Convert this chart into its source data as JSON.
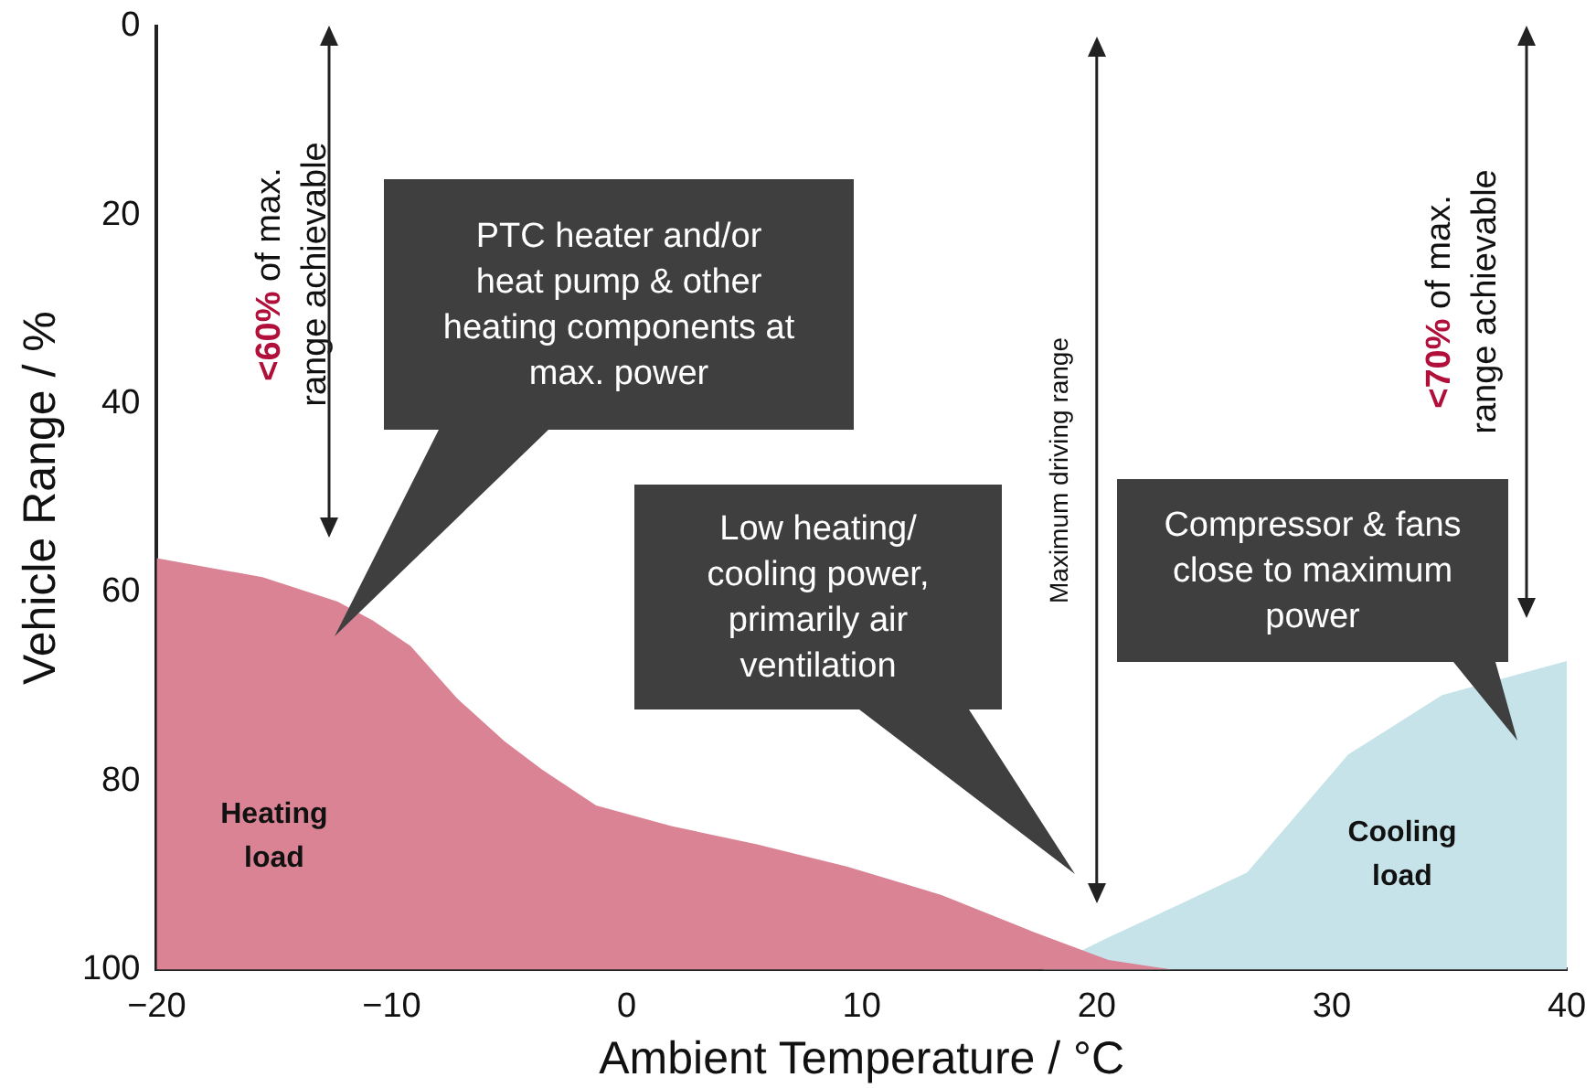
{
  "chart_data": {
    "type": "area",
    "xlabel": "Ambient Temperature / °C",
    "ylabel": "Vehicle Range / %",
    "xlim": [
      -20,
      40
    ],
    "xticks": [
      {
        "value": -20,
        "label": "−20"
      },
      {
        "value": -10,
        "label": "−10"
      },
      0,
      10,
      20,
      30,
      40
    ],
    "ylim": [
      100,
      0
    ],
    "yticks": [
      0,
      20,
      40,
      60,
      80,
      100
    ],
    "grid": false,
    "legend": false,
    "series": [
      {
        "name": "Heating load",
        "color": "#d98395",
        "x": [
          -20,
          -20,
          -15.5,
          -12.3,
          -10.8,
          -9.2,
          -7.2,
          -5.2,
          -3.6,
          -1.3,
          1.9,
          5.5,
          9.4,
          13.4,
          17.3,
          20.5,
          23.2
        ],
        "values": [
          100,
          56.4,
          58.4,
          61,
          63,
          65.7,
          71.3,
          75.8,
          78.8,
          82.6,
          84.8,
          86.7,
          89.1,
          92.1,
          96,
          99,
          100
        ]
      },
      {
        "name": "Cooling load",
        "color": "#c5e3e8",
        "x": [
          17.7,
          20.5,
          23.6,
          26.4,
          30.7,
          34.7,
          40,
          40
        ],
        "values": [
          100,
          96.6,
          93,
          89.7,
          77.2,
          70.9,
          67.3,
          100
        ]
      }
    ],
    "ref_lines": [
      {
        "axis": "x",
        "value": 20,
        "label": "Maximum driving range",
        "color": "#222222"
      }
    ],
    "annotations": [
      "PTC heater and/or heat pump & other heating components at max. power",
      "Low heating/ cooling power, primarily air ventilation",
      "Compressor & fans close to maximum power",
      "<60% of max. range achievable",
      "<70% of max. range achievable"
    ]
  }
}
